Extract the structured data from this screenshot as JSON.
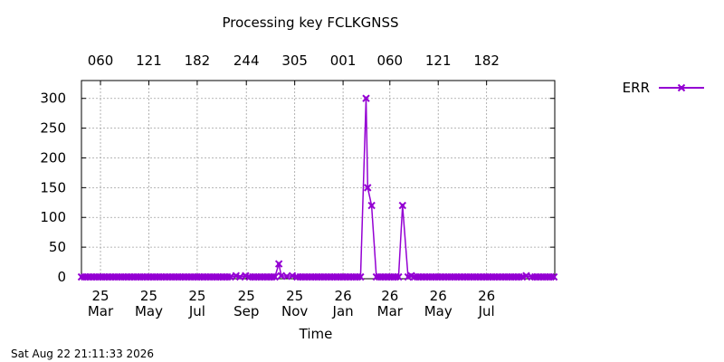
{
  "chart_data": {
    "type": "line",
    "title": "Processing key FCLKGNSS",
    "xlabel": "Time",
    "ylabel": "",
    "ylim": [
      0,
      330
    ],
    "yticks": [
      0,
      50,
      100,
      150,
      200,
      250,
      300
    ],
    "xlim": [
      "2025-02-05",
      "2026-09-25"
    ],
    "x_bottom_ticks": [
      {
        "date": "2025-03-01",
        "label": [
          "25",
          "Mar"
        ]
      },
      {
        "date": "2025-05-01",
        "label": [
          "25",
          "May"
        ]
      },
      {
        "date": "2025-07-01",
        "label": [
          "25",
          "Jul"
        ]
      },
      {
        "date": "2025-09-01",
        "label": [
          "25",
          "Sep"
        ]
      },
      {
        "date": "2025-11-01",
        "label": [
          "25",
          "Nov"
        ]
      },
      {
        "date": "2026-01-01",
        "label": [
          "26",
          "Jan"
        ]
      },
      {
        "date": "2026-03-01",
        "label": [
          "26",
          "Mar"
        ]
      },
      {
        "date": "2026-05-01",
        "label": [
          "26",
          "May"
        ]
      },
      {
        "date": "2026-07-01",
        "label": [
          "26",
          "Jul"
        ]
      }
    ],
    "x_top_ticks": [
      {
        "date": "2025-03-01",
        "label": "060"
      },
      {
        "date": "2025-05-01",
        "label": "121"
      },
      {
        "date": "2025-07-01",
        "label": "182"
      },
      {
        "date": "2025-09-01",
        "label": "244"
      },
      {
        "date": "2025-11-01",
        "label": "305"
      },
      {
        "date": "2026-01-01",
        "label": "001"
      },
      {
        "date": "2026-03-01",
        "label": "060"
      },
      {
        "date": "2026-05-01",
        "label": "121"
      },
      {
        "date": "2026-07-01",
        "label": "182"
      }
    ],
    "grid": true,
    "legend_position": "top-right outside",
    "series": [
      {
        "name": "ERR",
        "color": "#9400d3",
        "marker": "x",
        "baseline_start": "2025-02-05",
        "baseline_end": "2026-09-25",
        "baseline_value": 0,
        "baseline_step_days": 4,
        "points": [
          {
            "x": "2025-08-19",
            "y": 2
          },
          {
            "x": "2025-08-31",
            "y": 2
          },
          {
            "x": "2025-10-12",
            "y": 22
          },
          {
            "x": "2025-10-15",
            "y": 2
          },
          {
            "x": "2025-10-22",
            "y": 1
          },
          {
            "x": "2025-10-29",
            "y": 2
          },
          {
            "x": "2026-01-30",
            "y": 300
          },
          {
            "x": "2026-02-01",
            "y": 150
          },
          {
            "x": "2026-02-06",
            "y": 120
          },
          {
            "x": "2026-03-17",
            "y": 120
          },
          {
            "x": "2026-03-28",
            "y": 2
          },
          {
            "x": "2026-08-20",
            "y": 2
          }
        ]
      }
    ]
  },
  "timestamp": "Sat Aug 22 21:11:33 2026"
}
